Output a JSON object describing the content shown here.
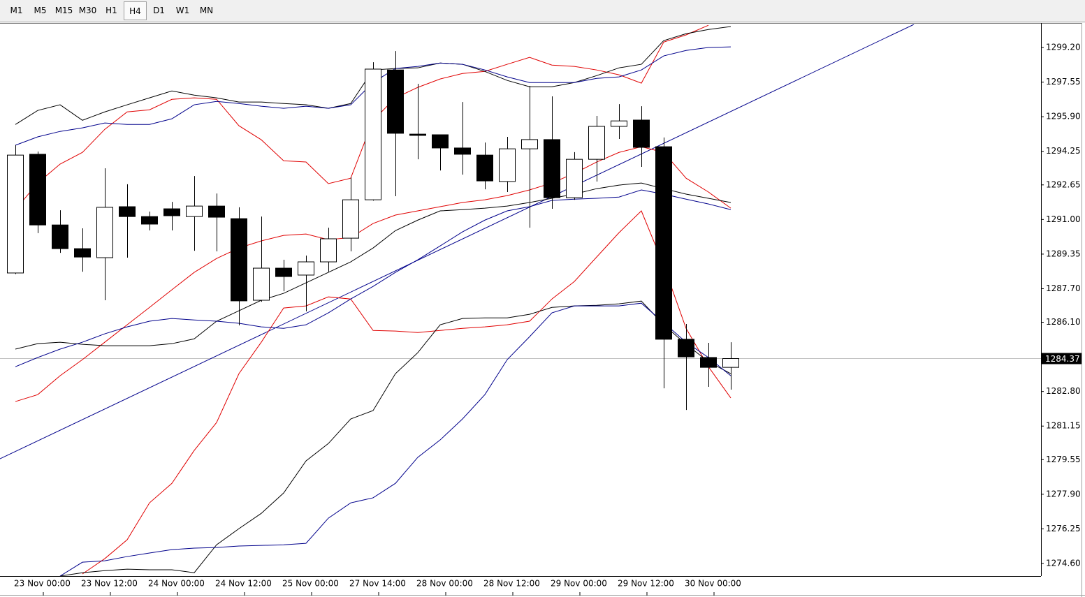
{
  "toolbar": {
    "timeframes": [
      "M1",
      "M5",
      "M15",
      "M30",
      "H1",
      "H4",
      "D1",
      "W1",
      "MN"
    ],
    "active_index": 5
  },
  "chart_data": {
    "type": "candlestick",
    "categories": [
      "23 Nov 00:00",
      null,
      null,
      "23 Nov 12:00",
      null,
      null,
      "24 Nov 00:00",
      null,
      null,
      "24 Nov 12:00",
      null,
      null,
      "25 Nov 00:00",
      null,
      null,
      "27 Nov 14:00",
      null,
      null,
      "28 Nov 00:00",
      null,
      null,
      "28 Nov 12:00",
      null,
      null,
      "29 Nov 00:00",
      null,
      null,
      "29 Nov 12:00",
      null,
      null,
      "30 Nov 00:00",
      null,
      null
    ],
    "open": [
      1288.45,
      1294.11,
      1290.74,
      1289.61,
      1289.18,
      1291.61,
      1291.14,
      1291.51,
      1291.14,
      1291.64,
      1291.04,
      1287.15,
      1288.68,
      1288.35,
      1288.98,
      1290.11,
      1291.94,
      1298.13,
      1295.07,
      1295.04,
      1294.41,
      1294.07,
      1292.81,
      1294.37,
      1294.81,
      1292.04,
      1293.87,
      1295.44,
      1295.74,
      1294.47,
      1285.29,
      1284.42,
      1283.95
    ],
    "high": [
      1294.54,
      1294.24,
      1291.44,
      1290.58,
      1293.44,
      1292.68,
      1291.38,
      1291.84,
      1293.07,
      1292.24,
      1291.58,
      1291.14,
      1289.08,
      1289.28,
      1290.61,
      1293.01,
      1298.5,
      1299.03,
      1297.47,
      1295.04,
      1296.6,
      1294.67,
      1294.94,
      1297.37,
      1296.87,
      1294.21,
      1295.94,
      1296.5,
      1296.4,
      1294.91,
      1286.02,
      1285.12,
      1285.15
    ],
    "low": [
      1288.4,
      1290.35,
      1289.41,
      1288.51,
      1287.15,
      1289.18,
      1290.48,
      1290.48,
      1289.51,
      1289.48,
      1285.95,
      1287.08,
      1287.58,
      1286.62,
      1288.51,
      1289.48,
      1291.9,
      1292.11,
      1293.87,
      1293.34,
      1293.14,
      1292.44,
      1292.31,
      1290.61,
      1291.51,
      1291.94,
      1292.81,
      1294.84,
      1293.51,
      1282.95,
      1281.92,
      1283.02,
      1282.89
    ],
    "close": [
      1294.07,
      1290.74,
      1289.61,
      1289.21,
      1291.58,
      1291.14,
      1290.78,
      1291.18,
      1291.64,
      1291.11,
      1287.12,
      1288.68,
      1288.28,
      1288.98,
      1290.08,
      1291.94,
      1298.17,
      1295.11,
      1295.01,
      1294.41,
      1294.11,
      1292.84,
      1294.37,
      1294.81,
      1292.04,
      1293.87,
      1295.44,
      1295.7,
      1294.44,
      1285.29,
      1284.45,
      1283.95,
      1284.37
    ],
    "up_color": "#ffffff",
    "down_color": "#000000",
    "series": [
      {
        "color": "#e00000",
        "values": [
          1291.47,
          1292.74,
          1293.64,
          1294.2,
          1295.3,
          1296.13,
          1296.23,
          1296.73,
          1296.8,
          1296.73,
          1295.47,
          1294.8,
          1293.8,
          1293.74,
          1292.71,
          1292.97,
          1295.73,
          1296.8,
          1297.3,
          1297.7,
          1297.96,
          1298.06,
          1298.4,
          1298.73,
          1298.36,
          1298.3,
          1298.13,
          1297.9,
          1297.5,
          1299.46,
          1299.8,
          1300.26,
          null
        ]
      },
      {
        "color": "#e00000",
        "values": [
          1282.32,
          1282.65,
          1283.55,
          1284.32,
          1285.15,
          1285.98,
          1286.81,
          1287.65,
          1288.48,
          1289.14,
          1289.64,
          1289.98,
          1290.24,
          1290.31,
          1290.04,
          1290.14,
          1290.81,
          1291.21,
          1291.41,
          1291.61,
          1291.81,
          1291.94,
          1292.14,
          1292.41,
          1292.74,
          1293.2,
          1293.74,
          1294.2,
          1294.47,
          1294.2,
          1292.97,
          1292.31,
          1291.54
        ]
      },
      {
        "color": "#e00000",
        "values": [
          null,
          null,
          null,
          1274.1,
          1274.83,
          1275.73,
          1277.49,
          1278.42,
          1279.99,
          1281.32,
          1283.65,
          1285.15,
          1286.78,
          1286.88,
          1287.31,
          1287.21,
          1285.71,
          1285.68,
          1285.61,
          1285.71,
          1285.81,
          1285.88,
          1285.98,
          1286.15,
          1287.21,
          1288.04,
          1289.21,
          1290.37,
          1291.41,
          1288.81,
          1285.81,
          1283.98,
          1282.49
        ]
      },
      {
        "color": "#000000",
        "values": [
          1295.53,
          1296.2,
          1296.47,
          1295.73,
          1296.13,
          1296.47,
          1296.8,
          1297.13,
          1296.93,
          1296.8,
          1296.6,
          1296.6,
          1296.53,
          1296.47,
          1296.3,
          1296.53,
          1298.13,
          1298.2,
          1298.23,
          1298.46,
          1298.4,
          1298.06,
          1297.63,
          1297.33,
          1297.33,
          1297.53,
          1297.86,
          1298.23,
          1298.4,
          1299.53,
          1299.86,
          1300.06,
          1300.2
        ]
      },
      {
        "color": "#000000",
        "values": [
          1284.82,
          1285.08,
          1285.15,
          1285.05,
          1284.98,
          1284.98,
          1284.98,
          1285.08,
          1285.31,
          1286.15,
          1286.65,
          1287.15,
          1287.48,
          1287.98,
          1288.48,
          1288.98,
          1289.64,
          1290.47,
          1290.97,
          1291.41,
          1291.47,
          1291.54,
          1291.64,
          1291.81,
          1292.01,
          1292.21,
          1292.47,
          1292.64,
          1292.74,
          1292.47,
          1292.21,
          1292.01,
          1291.81
        ]
      },
      {
        "color": "#000000",
        "values": [
          null,
          null,
          1274.0,
          1274.16,
          1274.26,
          1274.33,
          1274.3,
          1274.3,
          1274.16,
          1275.49,
          1276.26,
          1276.99,
          1277.96,
          1279.49,
          1280.32,
          1281.49,
          1281.89,
          1283.65,
          1284.65,
          1285.98,
          1286.28,
          1286.31,
          1286.31,
          1286.48,
          1286.81,
          1286.88,
          1286.91,
          1286.98,
          1287.11,
          1285.98,
          1285.05,
          1284.22,
          1283.65
        ]
      },
      {
        "color": "#00008b",
        "values": [
          1294.54,
          1294.94,
          1295.2,
          1295.37,
          1295.6,
          1295.53,
          1295.53,
          1295.8,
          1296.47,
          1296.63,
          1296.53,
          1296.4,
          1296.3,
          1296.4,
          1296.3,
          1296.47,
          1297.53,
          1298.2,
          1298.3,
          1298.46,
          1298.4,
          1298.13,
          1297.8,
          1297.53,
          1297.53,
          1297.53,
          1297.73,
          1297.8,
          1298.13,
          1298.8,
          1299.06,
          1299.2,
          1299.23
        ]
      },
      {
        "color": "#00008b",
        "values": [
          1283.98,
          1284.42,
          1284.82,
          1285.15,
          1285.55,
          1285.88,
          1286.15,
          1286.28,
          1286.21,
          1286.15,
          1286.05,
          1285.88,
          1285.81,
          1285.98,
          1286.55,
          1287.21,
          1287.81,
          1288.48,
          1289.08,
          1289.74,
          1290.41,
          1290.97,
          1291.41,
          1291.61,
          1291.91,
          1291.97,
          1292.01,
          1292.07,
          1292.41,
          1292.21,
          1291.97,
          1291.74,
          1291.47
        ]
      },
      {
        "color": "#00008b",
        "values": [
          null,
          null,
          1274.0,
          1274.66,
          1274.73,
          1274.93,
          1275.1,
          1275.26,
          1275.33,
          1275.36,
          1275.43,
          1275.46,
          1275.49,
          1275.56,
          1276.76,
          1277.49,
          1277.73,
          1278.42,
          1279.66,
          1280.49,
          1281.49,
          1282.65,
          1284.32,
          1285.41,
          1286.55,
          1286.88,
          1286.88,
          1286.88,
          1287.01,
          1286.08,
          1285.15,
          1284.42,
          1283.55
        ]
      }
    ],
    "trendline": {
      "color": "#00008b",
      "x": [
        -0.69,
        40.19
      ],
      "values": [
        1279.59,
        1300.3
      ]
    },
    "current_price": 1284.37,
    "ylim": [
      1274.0,
      1300.3
    ],
    "yticks": [
      {
        "value": 1299.2,
        "label": "1299.20"
      },
      1297.55,
      {
        "value": 1295.9,
        "label": "1295.90"
      },
      1294.25,
      1292.65,
      {
        "value": 1291,
        "label": "1291.00"
      },
      1289.35,
      {
        "value": 1287.7,
        "label": "1287.70"
      },
      {
        "value": 1286.1,
        "label": "1286.10"
      },
      {
        "value": 1282.8,
        "label": "1282.80"
      },
      1281.15,
      1279.55,
      {
        "value": 1277.9,
        "label": "1277.90"
      },
      1276.25,
      {
        "value": 1274.6,
        "label": "1274.60"
      }
    ]
  }
}
